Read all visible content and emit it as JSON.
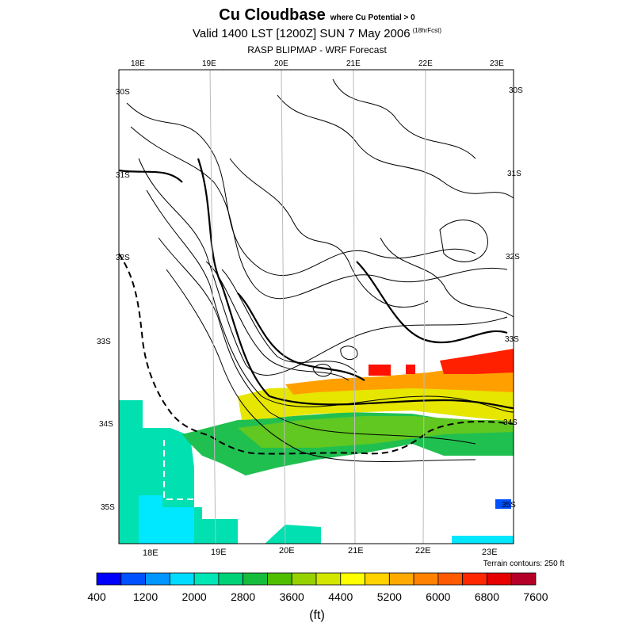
{
  "header": {
    "title": "Cu Cloudbase",
    "title_sub": "where Cu Potential > 0",
    "valid": "Valid 1400 LST [1200Z] SUN 7 May 2006",
    "valid_sub": "(18hrFcst)",
    "product": "RASP BLIPMAP - WRF Forecast"
  },
  "map": {
    "lon_labels_top": [
      "18E",
      "19E",
      "20E",
      "21E",
      "22E",
      "23E"
    ],
    "lon_labels_bottom": [
      "18E",
      "19E",
      "20E",
      "21E",
      "22E",
      "23E"
    ],
    "lat_labels_left": [
      "30S",
      "31S",
      "32S",
      "33S",
      "34S",
      "35S"
    ],
    "lat_labels_right": [
      "30S",
      "31S",
      "32S",
      "33S",
      "34S",
      "35S"
    ],
    "terrain_note": "Terrain contours: 250 ft",
    "colors": {
      "ocean_shallow": "#00e8ff",
      "cyan_green": "#00e0b0",
      "green": "#20c050",
      "yellow": "#f0f000",
      "orange": "#ff8000",
      "red": "#ff0000"
    }
  },
  "legend": {
    "labels": [
      "400",
      "1200",
      "2000",
      "2800",
      "3600",
      "4400",
      "5200",
      "6000",
      "6800",
      "7600"
    ],
    "colors": [
      "#0000ff",
      "#0050ff",
      "#0096ff",
      "#00dcff",
      "#00e6b4",
      "#00d278",
      "#14be3c",
      "#50be00",
      "#96d200",
      "#d2e600",
      "#ffff00",
      "#ffd200",
      "#ffaa00",
      "#ff8200",
      "#ff5a00",
      "#ff2800",
      "#e60000",
      "#b40028"
    ],
    "units": "(ft)"
  }
}
